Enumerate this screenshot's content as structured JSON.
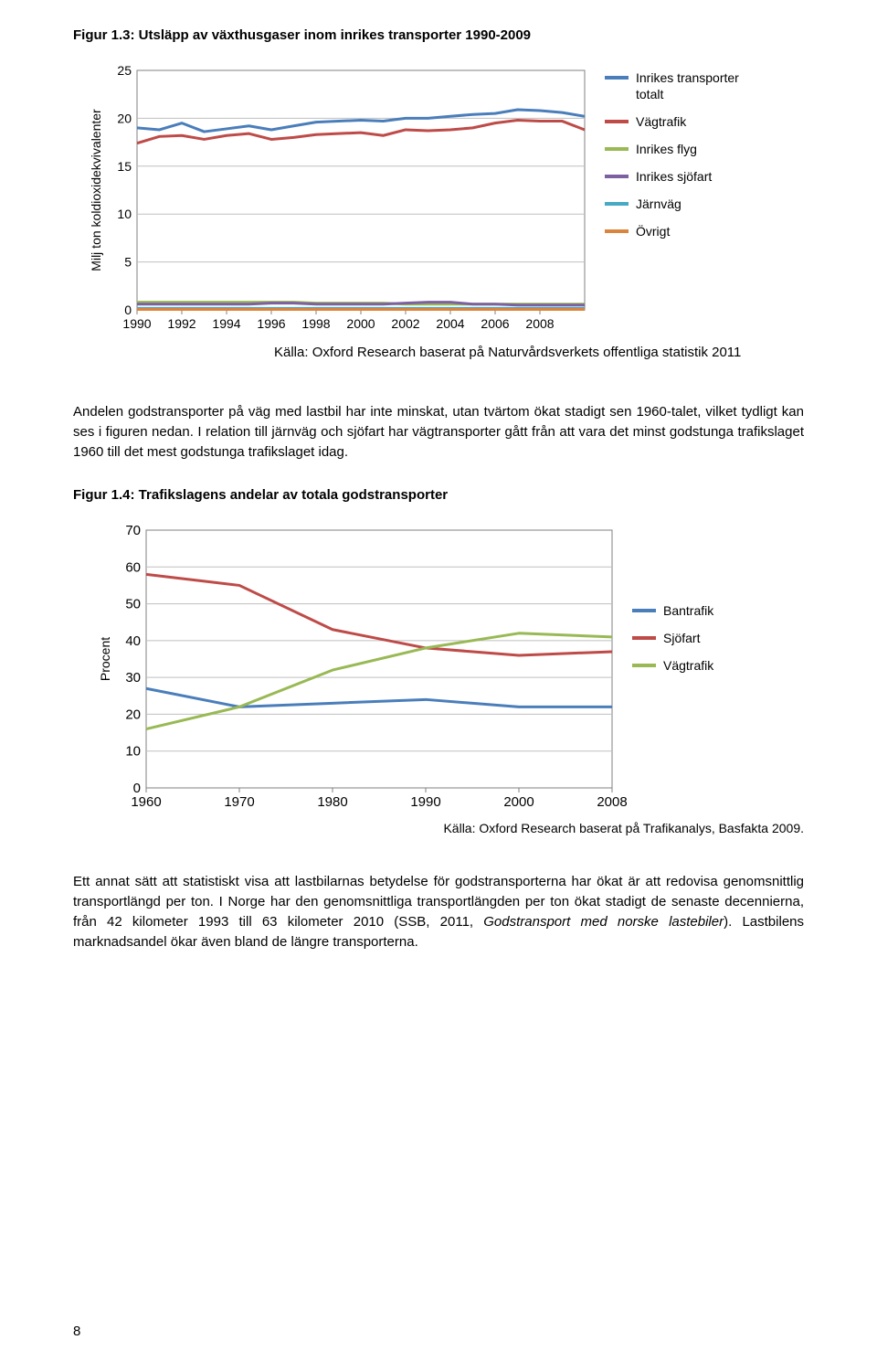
{
  "figure1": {
    "title": "Figur 1.3: Utsläpp av växthusgaser inom inrikes transporter 1990-2009",
    "ylabel": "Milj ton koldioxidekvivalenter",
    "x_ticks": [
      "1990",
      "1992",
      "1994",
      "1996",
      "1998",
      "2000",
      "2002",
      "2004",
      "2006",
      "2008"
    ],
    "y_ticks": [
      0,
      5,
      10,
      15,
      20,
      25
    ],
    "ylim": [
      0,
      25
    ],
    "grid_color": "#bfbfbf",
    "border_color": "#808080",
    "bg_color": "#ffffff",
    "line_width": 3,
    "tick_fontsize": 14,
    "series": {
      "totalt": {
        "color": "#4a7ebb",
        "label": "Inrikes transporter totalt",
        "values": [
          19.0,
          18.8,
          19.5,
          18.6,
          18.9,
          19.2,
          18.8,
          19.2,
          19.6,
          19.7,
          19.8,
          19.7,
          20.0,
          20.0,
          20.2,
          20.4,
          20.5,
          20.9,
          20.8,
          20.6,
          20.2
        ]
      },
      "vagtrafik": {
        "color": "#be4b48",
        "label": "Vägtrafik",
        "values": [
          17.4,
          18.1,
          18.2,
          17.8,
          18.2,
          18.4,
          17.8,
          18.0,
          18.3,
          18.4,
          18.5,
          18.2,
          18.8,
          18.7,
          18.8,
          19.0,
          19.5,
          19.8,
          19.7,
          19.7,
          18.8
        ]
      },
      "flyg": {
        "color": "#98b954",
        "label": "Inrikes flyg",
        "values": [
          0.8,
          0.8,
          0.8,
          0.8,
          0.8,
          0.8,
          0.8,
          0.8,
          0.7,
          0.7,
          0.7,
          0.7,
          0.6,
          0.6,
          0.6,
          0.6,
          0.6,
          0.6,
          0.6,
          0.6,
          0.6
        ]
      },
      "sjofart": {
        "color": "#7d60a0",
        "label": "Inrikes sjöfart",
        "values": [
          0.6,
          0.6,
          0.6,
          0.6,
          0.6,
          0.6,
          0.7,
          0.7,
          0.6,
          0.6,
          0.6,
          0.6,
          0.7,
          0.8,
          0.8,
          0.6,
          0.6,
          0.5,
          0.5,
          0.5,
          0.5
        ]
      },
      "jarnvag": {
        "color": "#46aac5",
        "label": "Järnväg",
        "values": [
          0.15,
          0.15,
          0.15,
          0.15,
          0.15,
          0.15,
          0.15,
          0.15,
          0.15,
          0.15,
          0.15,
          0.15,
          0.15,
          0.15,
          0.15,
          0.15,
          0.15,
          0.15,
          0.15,
          0.15,
          0.15
        ]
      },
      "ovrigt": {
        "color": "#db843d",
        "label": "Övrigt",
        "values": [
          0.05,
          0.05,
          0.05,
          0.05,
          0.05,
          0.05,
          0.05,
          0.05,
          0.05,
          0.05,
          0.05,
          0.05,
          0.05,
          0.05,
          0.05,
          0.05,
          0.05,
          0.05,
          0.05,
          0.05,
          0.05
        ]
      }
    },
    "legend_order": [
      "totalt",
      "vagtrafik",
      "flyg",
      "sjofart",
      "jarnvag",
      "ovrigt"
    ],
    "source": "Källa: Oxford Research baserat på Naturvårdsverkets offentliga statistik 2011"
  },
  "para1": "Andelen godstransporter på väg med lastbil har inte minskat, utan tvärtom ökat stadigt sen 1960-talet, vilket tydligt kan ses i figuren nedan. I relation till järnväg och sjöfart har vägtransporter gått från att vara det minst godstunga trafikslaget 1960 till det mest godstunga trafikslaget idag.",
  "figure2": {
    "title": "Figur 1.4: Trafikslagens andelar av totala godstransporter",
    "ylabel": "Procent",
    "x_ticks": [
      "1960",
      "1970",
      "1980",
      "1990",
      "2000",
      "2008"
    ],
    "y_ticks": [
      0,
      10,
      20,
      30,
      40,
      50,
      60,
      70
    ],
    "ylim": [
      0,
      70
    ],
    "grid_color": "#bfbfbf",
    "border_color": "#808080",
    "bg_color": "#ffffff",
    "line_width": 3,
    "tick_fontsize": 15,
    "series": {
      "bantrafik": {
        "color": "#4a7ebb",
        "label": "Bantrafik",
        "values": [
          27,
          22,
          23,
          24,
          22,
          22
        ]
      },
      "sjofart": {
        "color": "#be4b48",
        "label": "Sjöfart",
        "values": [
          58,
          55,
          43,
          38,
          36,
          37
        ]
      },
      "vagtrafik": {
        "color": "#98b954",
        "label": "Vägtrafik",
        "values": [
          16,
          22,
          32,
          38,
          42,
          41
        ]
      }
    },
    "legend_order": [
      "bantrafik",
      "sjofart",
      "vagtrafik"
    ],
    "source": "Källa: Oxford Research baserat på Trafikanalys, Basfakta 2009."
  },
  "para2_pre": "Ett annat sätt att statistiskt visa att lastbilarnas betydelse för godstransporterna har ökat är att redovisa genomsnittlig transportlängd per ton. I Norge har den genomsnittliga transportlängden per ton ökat stadigt de senaste decennierna, från 42 kilometer 1993 till 63 kilometer 2010 (SSB, 2011, ",
  "para2_italic": "Godstransport med norske lastebiler",
  "para2_post": "). Lastbilens marknadsandel ökar även bland de längre transporterna.",
  "page_number": "8"
}
